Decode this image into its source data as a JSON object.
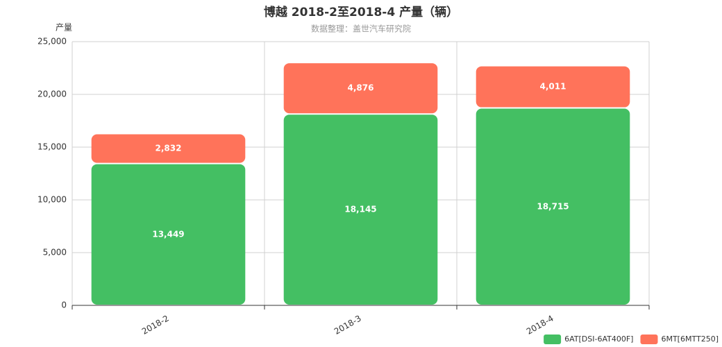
{
  "chart_data": {
    "type": "stacked_bar",
    "title": "博越 2018-2至2018-4 产量（辆）",
    "subtitle": "数据整理：盖世汽车研究院",
    "y_label": "产量",
    "categories": [
      "2018-2",
      "2018-3",
      "2018-4"
    ],
    "series": [
      {
        "name": "6AT[DSI-6AT400F]",
        "color": "#44bf63",
        "values": [
          13449,
          18145,
          18715
        ],
        "value_labels": [
          "13,449",
          "18,145",
          "18,715"
        ]
      },
      {
        "name": "6MT[6MTT250]",
        "color": "#ff735a",
        "values": [
          2832,
          4876,
          4011
        ],
        "value_labels": [
          "2,832",
          "4,876",
          "4,011"
        ]
      }
    ],
    "ylim": [
      0,
      25000
    ],
    "yticks": [
      0,
      {
        "value": 5000,
        "label": "5,000"
      },
      {
        "value": 10000,
        "label": "10,000"
      },
      {
        "value": 15000,
        "label": "15,000"
      },
      {
        "value": 20000,
        "label": "20,000"
      },
      {
        "value": 25000,
        "label": "25,000"
      }
    ],
    "grid": true,
    "legend": "bottom-right"
  }
}
